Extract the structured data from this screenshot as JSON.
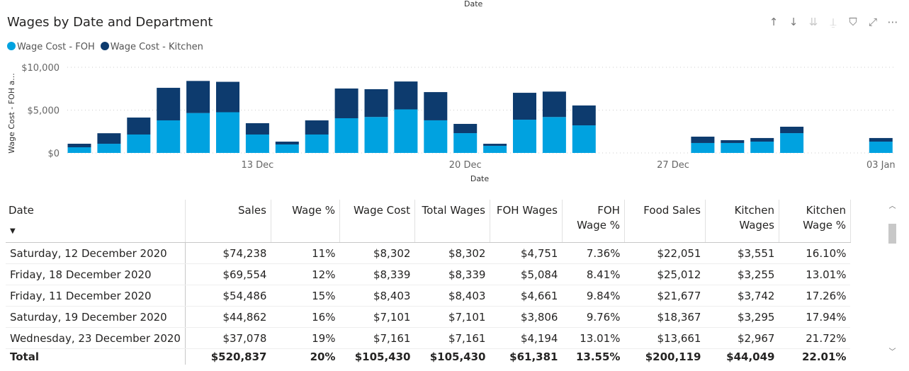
{
  "top_label": "Date",
  "visual": {
    "title": "Wages by Date and Department",
    "header_icons": [
      "arrow-up-icon",
      "arrow-down-icon",
      "double-arrow-down-icon",
      "expand-hierarchy-icon",
      "filter-icon",
      "focus-mode-icon",
      "more-options-icon"
    ]
  },
  "chart_data": {
    "type": "bar",
    "stacked": true,
    "xlabel": "Date",
    "ylabel": "Wage Cost - FOH a...",
    "ylim": [
      0,
      10000
    ],
    "yticks": [
      "$0",
      "$5,000",
      "$10,000"
    ],
    "ytick_values": [
      0,
      5000,
      10000
    ],
    "xticks": [
      "13 Dec",
      "20 Dec",
      "27 Dec",
      "03 Jan"
    ],
    "xtick_dates": [
      "2020-12-13",
      "2020-12-20",
      "2020-12-27",
      "2021-01-03"
    ],
    "grid": true,
    "legend_placement": "top-left",
    "colors": {
      "foh": "#00a2e0",
      "kitchen": "#0d3b6e"
    },
    "x": [
      "2020-12-07",
      "2020-12-08",
      "2020-12-09",
      "2020-12-10",
      "2020-12-11",
      "2020-12-12",
      "2020-12-13",
      "2020-12-14",
      "2020-12-15",
      "2020-12-16",
      "2020-12-17",
      "2020-12-18",
      "2020-12-19",
      "2020-12-20",
      "2020-12-21",
      "2020-12-22",
      "2020-12-23",
      "2020-12-24",
      "2020-12-28",
      "2020-12-29",
      "2020-12-30",
      "2020-12-31",
      "2021-01-03"
    ],
    "series": [
      {
        "name": "Wage Cost - FOH",
        "values": [
          660,
          1070,
          2150,
          3800,
          4661,
          4751,
          2150,
          990,
          2150,
          4050,
          4200,
          5084,
          3806,
          2310,
          830,
          3880,
          4194,
          3220,
          1160,
          1160,
          1320,
          2310,
          1320
        ]
      },
      {
        "name": "Wage Cost - Kitchen",
        "values": [
          414,
          1230,
          1980,
          3800,
          3742,
          3551,
          1320,
          330,
          1650,
          3470,
          3240,
          3255,
          3295,
          1080,
          240,
          3140,
          2967,
          2320,
          740,
          330,
          420,
          750,
          420
        ]
      }
    ]
  },
  "table": {
    "headers": [
      [
        "Date"
      ],
      [
        "Sales"
      ],
      [
        "Wage %"
      ],
      [
        "Wage Cost"
      ],
      [
        "Total Wages"
      ],
      [
        "FOH Wages"
      ],
      [
        "FOH",
        "Wage %"
      ],
      [
        "Food Sales"
      ],
      [
        "Kitchen",
        "Wages"
      ],
      [
        "Kitchen",
        "Wage %"
      ]
    ],
    "sort_column": "Date",
    "rows": [
      [
        "Saturday, 12 December 2020",
        "$74,238",
        "11%",
        "$8,302",
        "$8,302",
        "$4,751",
        "7.36%",
        "$22,051",
        "$3,551",
        "16.10%"
      ],
      [
        "Friday, 18 December 2020",
        "$69,554",
        "12%",
        "$8,339",
        "$8,339",
        "$5,084",
        "8.41%",
        "$25,012",
        "$3,255",
        "13.01%"
      ],
      [
        "Friday, 11 December 2020",
        "$54,486",
        "15%",
        "$8,403",
        "$8,403",
        "$4,661",
        "9.84%",
        "$21,677",
        "$3,742",
        "17.26%"
      ],
      [
        "Saturday, 19 December 2020",
        "$44,862",
        "16%",
        "$7,101",
        "$7,101",
        "$3,806",
        "9.76%",
        "$18,367",
        "$3,295",
        "17.94%"
      ],
      [
        "Wednesday, 23 December 2020",
        "$37,078",
        "19%",
        "$7,161",
        "$7,161",
        "$4,194",
        "13.01%",
        "$13,661",
        "$2,967",
        "21.72%"
      ]
    ],
    "total": [
      "Total",
      "$520,837",
      "20%",
      "$105,430",
      "$105,430",
      "$61,381",
      "13.55%",
      "$200,119",
      "$44,049",
      "22.01%"
    ]
  }
}
